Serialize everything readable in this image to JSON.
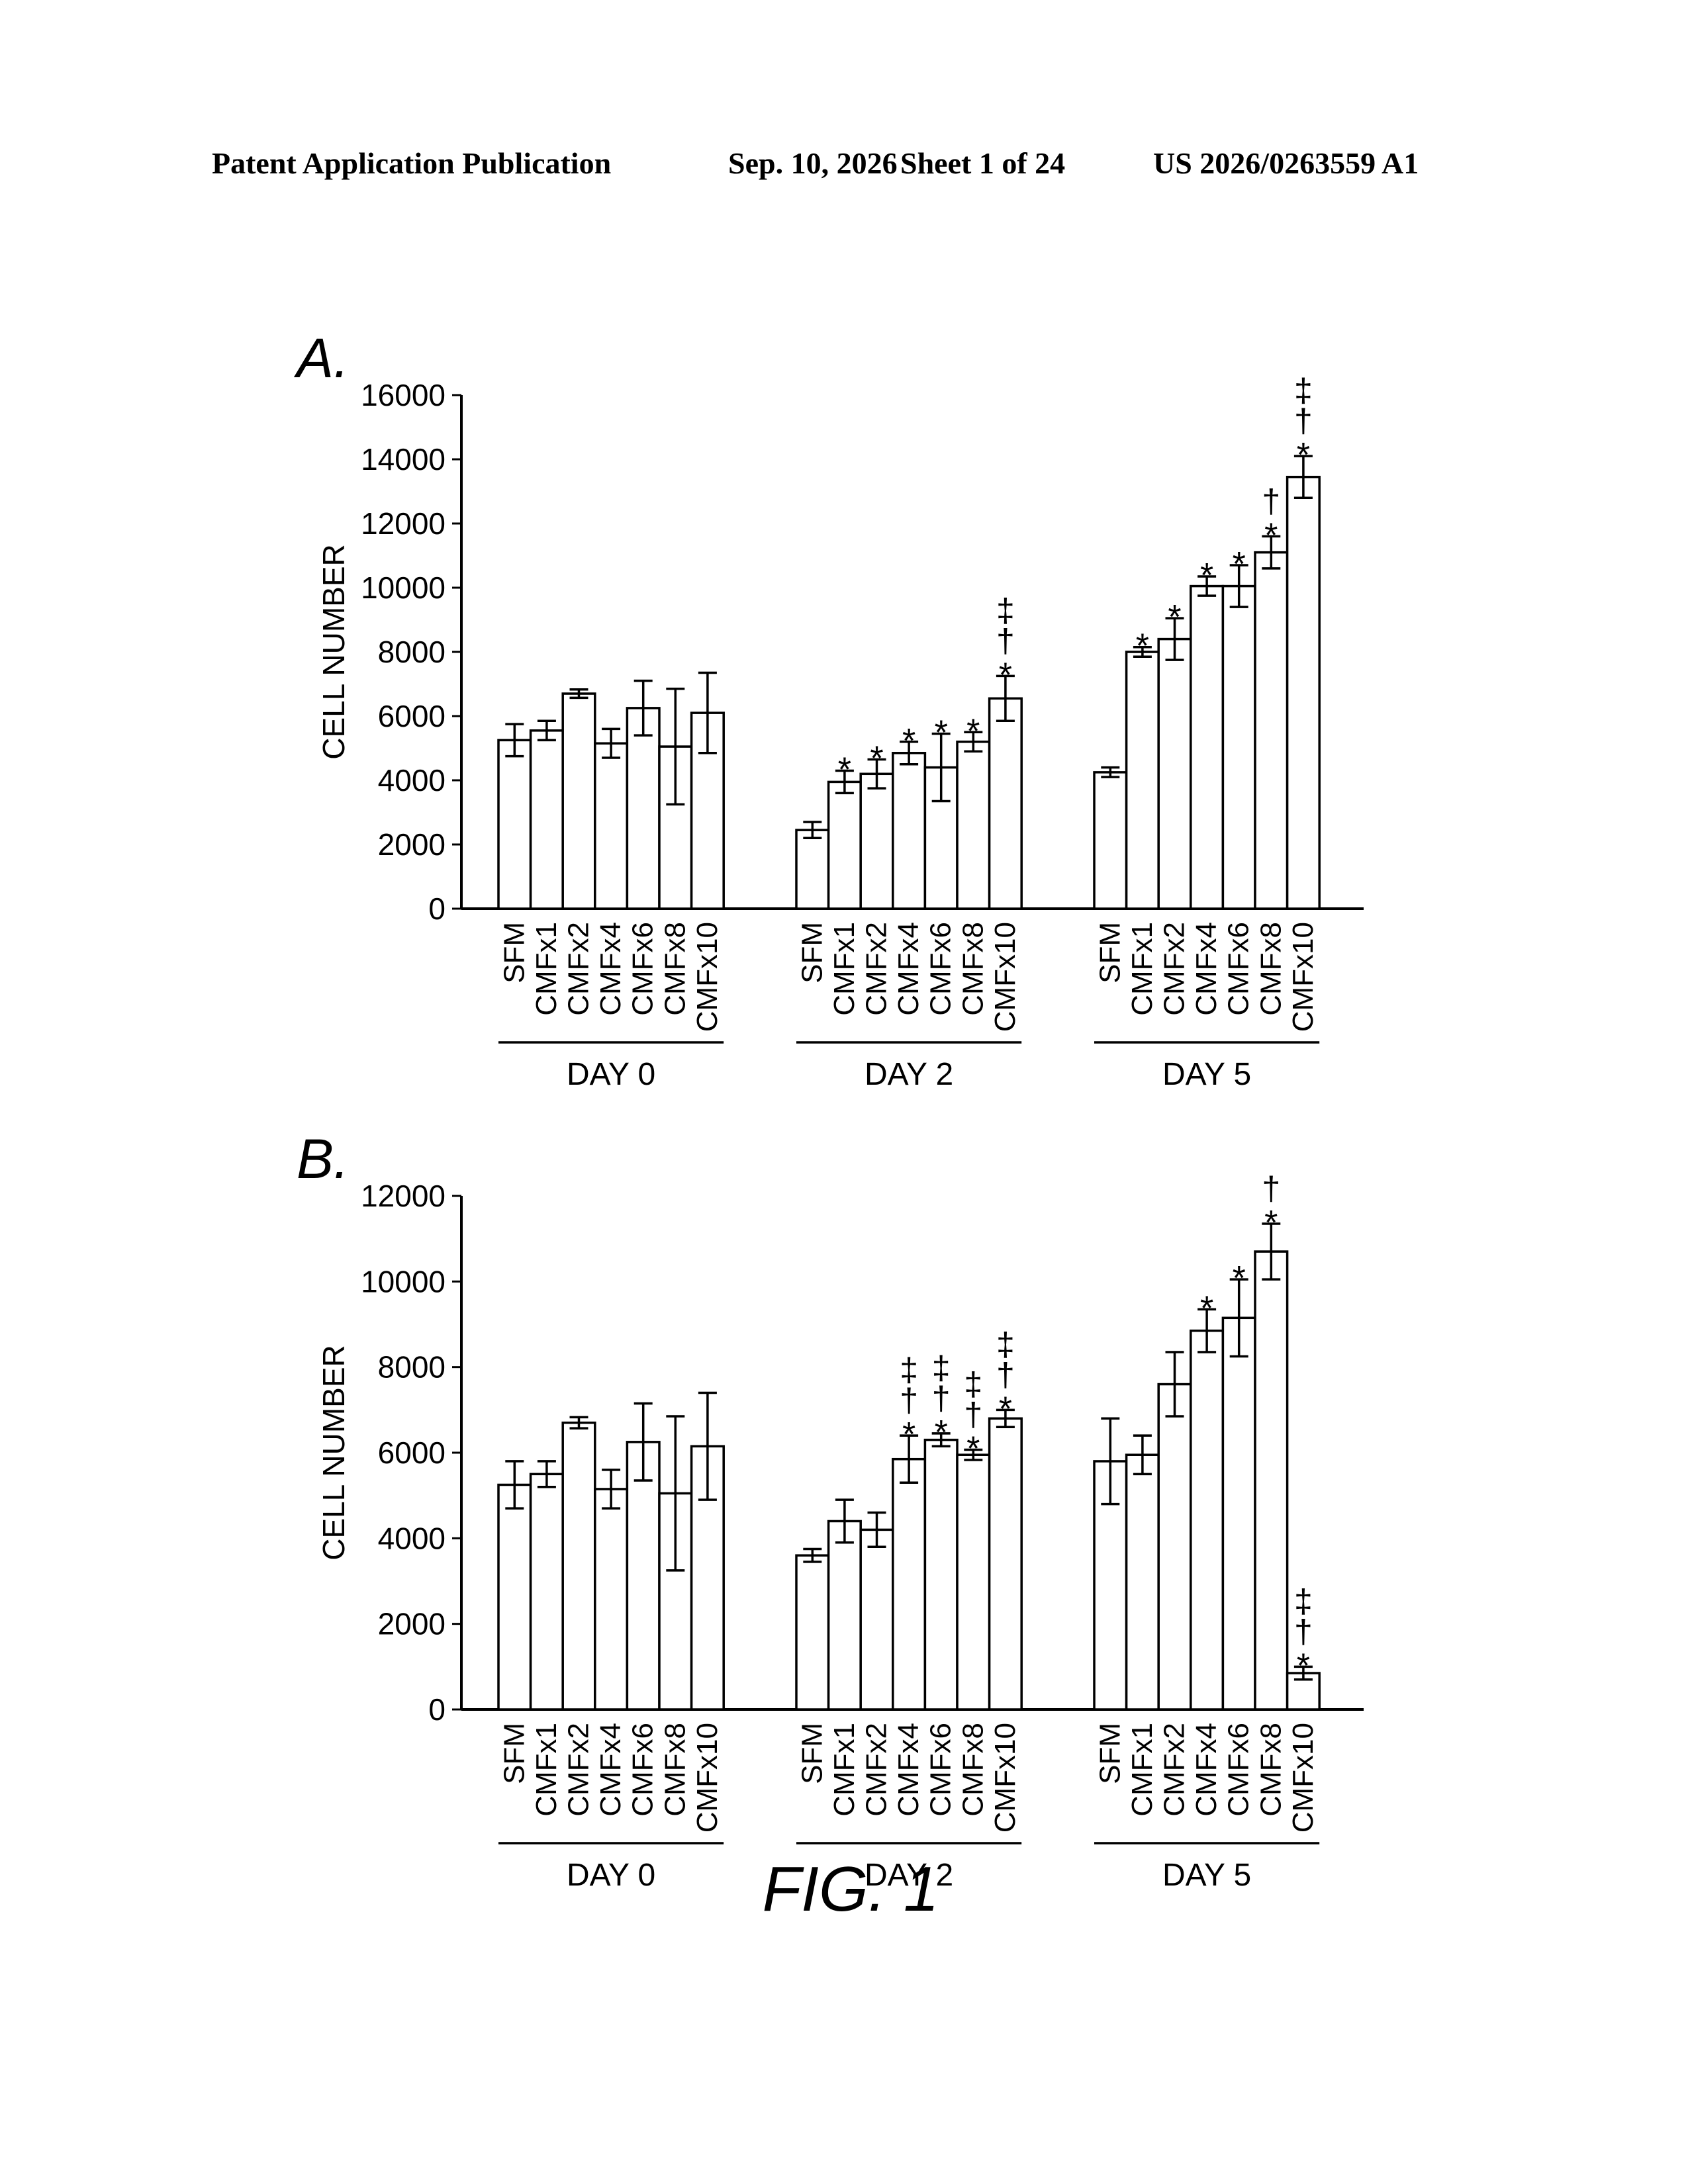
{
  "header": {
    "publication": "Patent Application Publication",
    "date": "Sep. 10, 2026",
    "sheet": "Sheet 1 of 24",
    "number": "US 2026/0263559 A1"
  },
  "figure_caption": "FIG. 1",
  "chart_data": [
    {
      "type": "bar",
      "panel_label": "A.",
      "ylabel": "CELL NUMBER",
      "ylim": [
        0,
        16000
      ],
      "yticks": [
        0,
        2000,
        4000,
        6000,
        8000,
        10000,
        12000,
        14000,
        16000
      ],
      "groups": [
        {
          "label": "DAY 0",
          "categories": [
            "SFM",
            "CMFx1",
            "CMFx2",
            "CMFx4",
            "CMFx6",
            "CMFx8",
            "CMFx10"
          ],
          "values": [
            5250,
            5550,
            6700,
            5150,
            6250,
            5050,
            6100
          ],
          "errors": [
            500,
            300,
            130,
            450,
            850,
            1800,
            1250
          ],
          "annotations": [
            "",
            "",
            "",
            "",
            "",
            "",
            ""
          ]
        },
        {
          "label": "DAY 2",
          "categories": [
            "SFM",
            "CMFx1",
            "CMFx2",
            "CMFx4",
            "CMFx6",
            "CMFx8",
            "CMFx10"
          ],
          "values": [
            2450,
            3950,
            4200,
            4850,
            4400,
            5200,
            6550
          ],
          "errors": [
            250,
            350,
            450,
            350,
            1050,
            300,
            700
          ],
          "annotations": [
            "",
            "*",
            "*",
            "*",
            "*",
            "*",
            "*†‡"
          ]
        },
        {
          "label": "DAY 5",
          "categories": [
            "SFM",
            "CMFx1",
            "CMFx2",
            "CMFx4",
            "CMFx6",
            "CMFx8",
            "CMFx10"
          ],
          "values": [
            4250,
            8000,
            8400,
            10050,
            10050,
            11100,
            13450
          ],
          "errors": [
            150,
            150,
            650,
            300,
            650,
            500,
            650
          ],
          "annotations": [
            "",
            "*",
            "*",
            "*",
            "*",
            "*†",
            "*†‡"
          ]
        }
      ]
    },
    {
      "type": "bar",
      "panel_label": "B.",
      "ylabel": "CELL NUMBER",
      "ylim": [
        0,
        12000
      ],
      "yticks": [
        0,
        2000,
        4000,
        6000,
        8000,
        10000,
        12000
      ],
      "groups": [
        {
          "label": "DAY 0",
          "categories": [
            "SFM",
            "CMFx1",
            "CMFx2",
            "CMFx4",
            "CMFx6",
            "CMFx8",
            "CMFx10"
          ],
          "values": [
            5250,
            5500,
            6700,
            5150,
            6250,
            5050,
            6150
          ],
          "errors": [
            550,
            300,
            130,
            450,
            900,
            1800,
            1250
          ],
          "annotations": [
            "",
            "",
            "",
            "",
            "",
            "",
            ""
          ]
        },
        {
          "label": "DAY 2",
          "categories": [
            "SFM",
            "CMFx1",
            "CMFx2",
            "CMFx4",
            "CMFx6",
            "CMFx8",
            "CMFx10"
          ],
          "values": [
            3600,
            4400,
            4200,
            5850,
            6300,
            5950,
            6800
          ],
          "errors": [
            150,
            500,
            400,
            550,
            150,
            120,
            200
          ],
          "annotations": [
            "",
            "",
            "",
            "*†‡",
            "*†‡",
            "*†‡",
            "*†‡"
          ]
        },
        {
          "label": "DAY 5",
          "categories": [
            "SFM",
            "CMFx1",
            "CMFx2",
            "CMFx4",
            "CMFx6",
            "CMFx8",
            "CMFx10"
          ],
          "values": [
            5800,
            5950,
            7600,
            8850,
            9150,
            10700,
            850
          ],
          "errors": [
            1000,
            450,
            750,
            500,
            900,
            650,
            150
          ],
          "annotations": [
            "",
            "",
            "",
            "*",
            "*",
            "*†",
            "*†‡",
            "*†‡§"
          ]
        }
      ]
    }
  ]
}
